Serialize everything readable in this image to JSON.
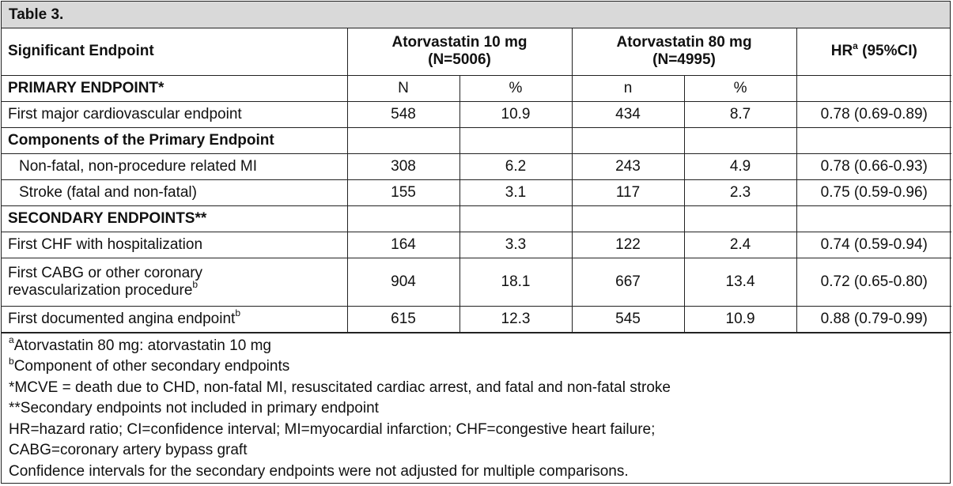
{
  "title": "Table 3.",
  "header": {
    "endpoint": "Significant Endpoint",
    "group1_line1": "Atorvastatin 10 mg",
    "group1_line2": "(N=5006)",
    "group2_line1": "Atorvastatin 80 mg",
    "group2_line2": "(N=4995)",
    "hr_label": "HR",
    "hr_sup": "a",
    "hr_ci": " (95%CI)"
  },
  "subheader": {
    "label": "PRIMARY ENDPOINT*",
    "n1": "N",
    "pct1": "%",
    "n2": "n",
    "pct2": "%"
  },
  "rows": [
    {
      "label": "First major cardiovascular endpoint",
      "n1": "548",
      "p1": "10.9",
      "n2": "434",
      "p2": "8.7",
      "hr": "0.78 (0.69-0.89)"
    },
    {
      "label": "Components of the Primary Endpoint"
    },
    {
      "label": "Non-fatal, non-procedure related MI",
      "n1": "308",
      "p1": "6.2",
      "n2": "243",
      "p2": "4.9",
      "hr": "0.78 (0.66-0.93)"
    },
    {
      "label": "Stroke (fatal and non-fatal)",
      "n1": "155",
      "p1": "3.1",
      "n2": "117",
      "p2": "2.3",
      "hr": "0.75 (0.59-0.96)"
    },
    {
      "label": "SECONDARY ENDPOINTS**"
    },
    {
      "label": "First CHF with hospitalization",
      "n1": "164",
      "p1": "3.3",
      "n2": "122",
      "p2": "2.4",
      "hr": "0.74 (0.59-0.94)"
    },
    {
      "label_line1": "First CABG or other coronary",
      "label_line2": "revascularization procedure",
      "sup": "b",
      "n1": "904",
      "p1": "18.1",
      "n2": "667",
      "p2": "13.4",
      "hr": "0.72 (0.65-0.80)"
    },
    {
      "label": "First documented angina endpoint",
      "sup": "b",
      "n1": "615",
      "p1": "12.3",
      "n2": "545",
      "p2": "10.9",
      "hr": "0.88 (0.79-0.99)"
    }
  ],
  "footnotes": {
    "a_sup": "a",
    "a_text": "Atorvastatin 80 mg: atorvastatin 10 mg",
    "b_sup": "b",
    "b_text": "Component of other secondary endpoints",
    "mcve": "*MCVE = death due to CHD, non-fatal MI, resuscitated cardiac arrest, and fatal and non-fatal stroke",
    "secondary": "**Secondary endpoints not included in primary endpoint",
    "abbrev1": "HR=hazard ratio; CI=confidence interval; MI=myocardial infarction; CHF=congestive heart failure;",
    "abbrev2": "CABG=coronary artery bypass graft",
    "ci_note": "Confidence intervals for the secondary endpoints were not adjusted for multiple comparisons."
  }
}
